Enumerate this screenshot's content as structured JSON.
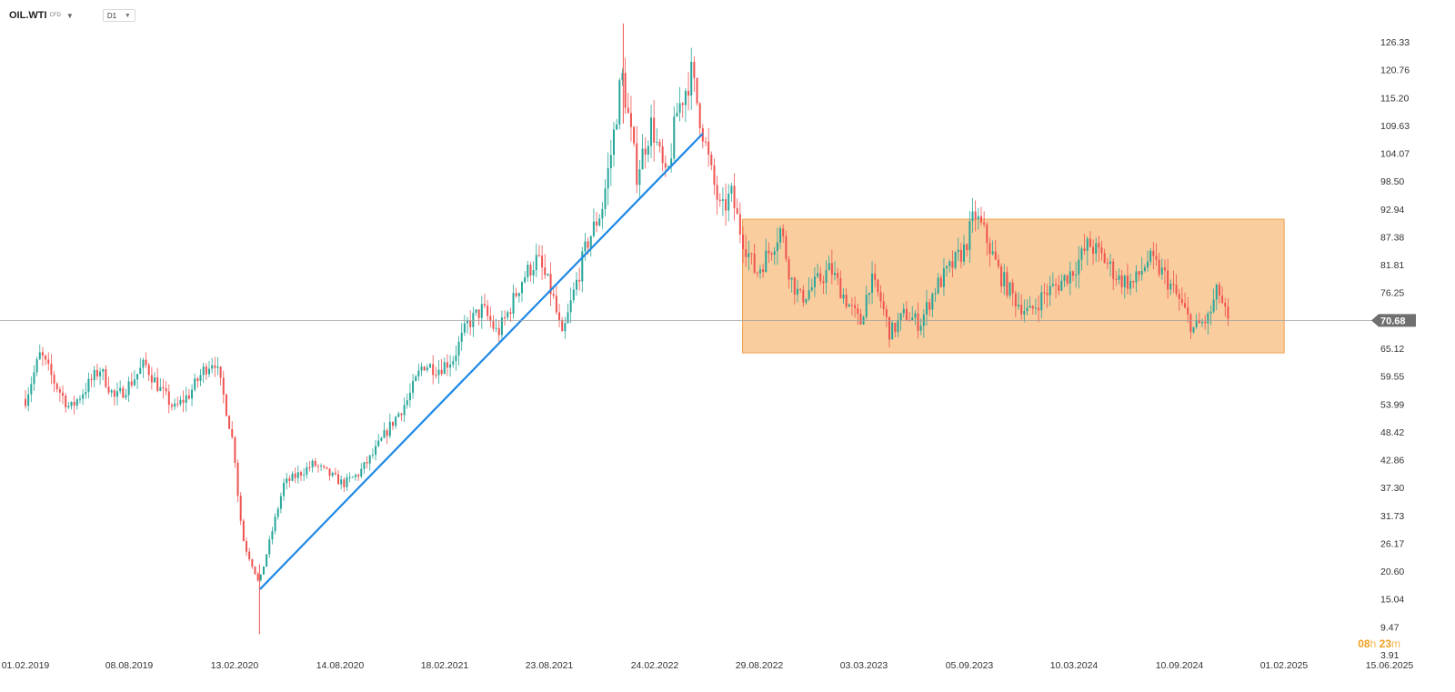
{
  "header": {
    "symbol": "OIL.WTI",
    "symbol_sub": "CFD",
    "timeframe": "D1"
  },
  "countdown": {
    "hours": "08",
    "hours_unit": "h",
    "minutes": "23",
    "minutes_unit": "m"
  },
  "colors": {
    "up": "#26a69a",
    "down": "#ef5350",
    "trendline": "#1e88e5",
    "range_fill": "#f9c48e",
    "range_stroke": "#f0a050",
    "price_line": "#9e9e9e",
    "price_tag": "#6f6f6f"
  },
  "chart_data": {
    "type": "candlestick",
    "xlabels": [
      "01.02.2019",
      "08.08.2019",
      "13.02.2020",
      "14.08.2020",
      "18.02.2021",
      "23.08.2021",
      "24.02.2022",
      "29.08.2022",
      "03.03.2023",
      "05.09.2023",
      "10.03.2024",
      "10.09.2024",
      "01.02.2025",
      "15.06.2025"
    ],
    "yticks": [
      "126.33",
      "120.76",
      "115.20",
      "109.63",
      "104.07",
      "98.50",
      "92.94",
      "87.38",
      "81.81",
      "76.25",
      "70.68",
      "65.12",
      "59.55",
      "53.99",
      "48.42",
      "42.86",
      "37.30",
      "31.73",
      "26.17",
      "20.60",
      "15.04",
      "9.47",
      "3.91"
    ],
    "ylim": [
      3.91,
      126.33
    ],
    "current_price": "70.68",
    "price_path": [
      [
        0,
        55
      ],
      [
        0.03,
        64
      ],
      [
        0.06,
        58
      ],
      [
        0.09,
        53
      ],
      [
        0.12,
        57
      ],
      [
        0.15,
        61
      ],
      [
        0.18,
        55
      ],
      [
        0.21,
        58
      ],
      [
        0.24,
        62
      ],
      [
        0.27,
        57
      ],
      [
        0.3,
        53
      ],
      [
        0.33,
        56
      ],
      [
        0.36,
        61
      ],
      [
        0.38,
        63
      ],
      [
        0.4,
        55
      ],
      [
        0.42,
        45
      ],
      [
        0.43,
        33
      ],
      [
        0.44,
        26
      ],
      [
        0.46,
        21
      ],
      [
        0.47,
        18
      ],
      [
        0.48,
        22
      ],
      [
        0.5,
        30
      ],
      [
        0.52,
        38
      ],
      [
        0.55,
        40
      ],
      [
        0.58,
        42
      ],
      [
        0.61,
        40
      ],
      [
        0.64,
        38
      ],
      [
        0.67,
        40
      ],
      [
        0.7,
        44
      ],
      [
        0.73,
        49
      ],
      [
        0.77,
        55
      ],
      [
        0.8,
        62
      ],
      [
        0.83,
        61
      ],
      [
        0.86,
        63
      ],
      [
        0.89,
        70
      ],
      [
        0.92,
        73
      ],
      [
        0.95,
        68
      ],
      [
        0.97,
        72
      ],
      [
        1.0,
        79
      ],
      [
        1.03,
        83
      ],
      [
        1.06,
        76
      ],
      [
        1.08,
        67
      ],
      [
        1.1,
        75
      ],
      [
        1.13,
        86
      ],
      [
        1.16,
        93
      ],
      [
        1.18,
        105
      ],
      [
        1.2,
        120
      ],
      [
        1.23,
        100
      ],
      [
        1.26,
        110
      ],
      [
        1.29,
        98
      ],
      [
        1.31,
        112
      ],
      [
        1.34,
        120
      ],
      [
        1.36,
        110
      ],
      [
        1.38,
        100
      ],
      [
        1.4,
        92
      ],
      [
        1.42,
        96
      ],
      [
        1.44,
        88
      ],
      [
        1.47,
        80
      ],
      [
        1.5,
        85
      ],
      [
        1.52,
        89
      ],
      [
        1.54,
        79
      ],
      [
        1.56,
        75
      ],
      [
        1.59,
        78
      ],
      [
        1.62,
        81
      ],
      [
        1.65,
        75
      ],
      [
        1.68,
        70
      ],
      [
        1.7,
        79
      ],
      [
        1.72,
        75
      ],
      [
        1.74,
        68
      ],
      [
        1.77,
        72
      ],
      [
        1.8,
        70
      ],
      [
        1.83,
        77
      ],
      [
        1.86,
        81
      ],
      [
        1.89,
        85
      ],
      [
        1.91,
        92
      ],
      [
        1.93,
        88
      ],
      [
        1.96,
        80
      ],
      [
        1.99,
        75
      ],
      [
        2.02,
        72
      ],
      [
        2.05,
        76
      ],
      [
        2.08,
        78
      ],
      [
        2.11,
        81
      ],
      [
        2.14,
        86
      ],
      [
        2.17,
        83
      ],
      [
        2.2,
        79
      ],
      [
        2.23,
        78
      ],
      [
        2.26,
        83
      ],
      [
        2.29,
        80
      ],
      [
        2.32,
        75
      ],
      [
        2.35,
        69
      ],
      [
        2.38,
        71
      ],
      [
        2.4,
        77
      ],
      [
        2.42,
        70
      ]
    ],
    "trendline": {
      "from": [
        0.472,
        17.0
      ],
      "to": [
        1.363,
        108.0
      ]
    },
    "range_box": {
      "x0": 1.443,
      "x1": 2.533,
      "y0": 64.2,
      "y1": 90.9
    }
  }
}
